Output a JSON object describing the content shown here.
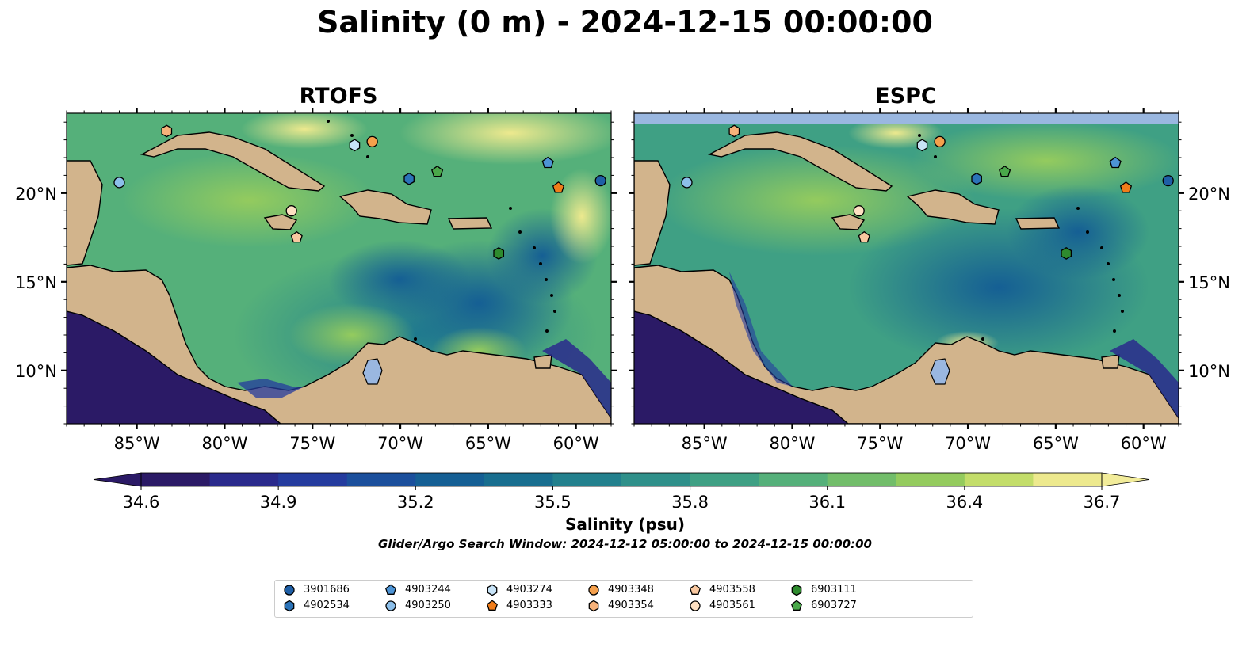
{
  "title": "Salinity (0 m) - 2024-12-15 00:00:00",
  "panels": [
    {
      "title": "RTOFS"
    },
    {
      "title": "ESPC"
    }
  ],
  "lon_ticks": [
    "85°W",
    "80°W",
    "75°W",
    "70°W",
    "65°W",
    "60°W"
  ],
  "lat_ticks": [
    "20°N",
    "15°N",
    "10°N"
  ],
  "colorbar": {
    "label": "Salinity (psu)",
    "ticks": [
      "34.6",
      "34.9",
      "35.2",
      "35.5",
      "35.8",
      "36.1",
      "36.4",
      "36.7"
    ],
    "colors": [
      "#2b1a66",
      "#2a2a8c",
      "#243b9e",
      "#1b4f9c",
      "#155f94",
      "#186e8f",
      "#22808d",
      "#2f908a",
      "#3fa084",
      "#55b07a",
      "#72bd6a",
      "#94cb5e",
      "#c3dd6a",
      "#ede98e"
    ]
  },
  "search_window": "Glider/Argo Search Window: 2024-12-12 05:00:00 to 2024-12-15 00:00:00",
  "chart_data": {
    "type": "map",
    "projection": "PlateCarree",
    "lon_range": [
      -89,
      -58
    ],
    "lat_range": [
      7,
      24.5
    ],
    "colorbar_range": [
      34.6,
      36.7
    ],
    "platforms": [
      {
        "id": "3901686",
        "marker": "circle",
        "color": "#1f5fa6",
        "lon": -58.6,
        "lat": 20.7
      },
      {
        "id": "4902534",
        "marker": "hexagon",
        "color": "#2b73b8",
        "lon": -69.5,
        "lat": 20.8
      },
      {
        "id": "4903244",
        "marker": "pentagon",
        "color": "#4d94d6",
        "lon": -61.6,
        "lat": 21.7
      },
      {
        "id": "4903250",
        "marker": "circle",
        "color": "#8cbfea",
        "lon": -86.0,
        "lat": 20.6
      },
      {
        "id": "4903274",
        "marker": "hexagon",
        "color": "#c7e3f7",
        "lon": -72.6,
        "lat": 22.7
      },
      {
        "id": "4903333",
        "marker": "pentagon",
        "color": "#f07d1a",
        "lon": -61.0,
        "lat": 20.3
      },
      {
        "id": "4903348",
        "marker": "circle",
        "color": "#f5a04c",
        "lon": -71.6,
        "lat": 22.9
      },
      {
        "id": "4903354",
        "marker": "hexagon",
        "color": "#f7b27a",
        "lon": -83.3,
        "lat": 23.5
      },
      {
        "id": "4903558",
        "marker": "pentagon",
        "color": "#f9c8a0",
        "lon": -75.9,
        "lat": 17.5
      },
      {
        "id": "4903561",
        "marker": "circle",
        "color": "#fde0c2",
        "lon": -76.2,
        "lat": 19.0
      },
      {
        "id": "6903111",
        "marker": "hexagon",
        "color": "#2e8b2e",
        "lon": -64.4,
        "lat": 16.6
      },
      {
        "id": "6903727",
        "marker": "pentagon",
        "color": "#4aa84a",
        "lon": -67.9,
        "lat": 21.2
      }
    ]
  }
}
